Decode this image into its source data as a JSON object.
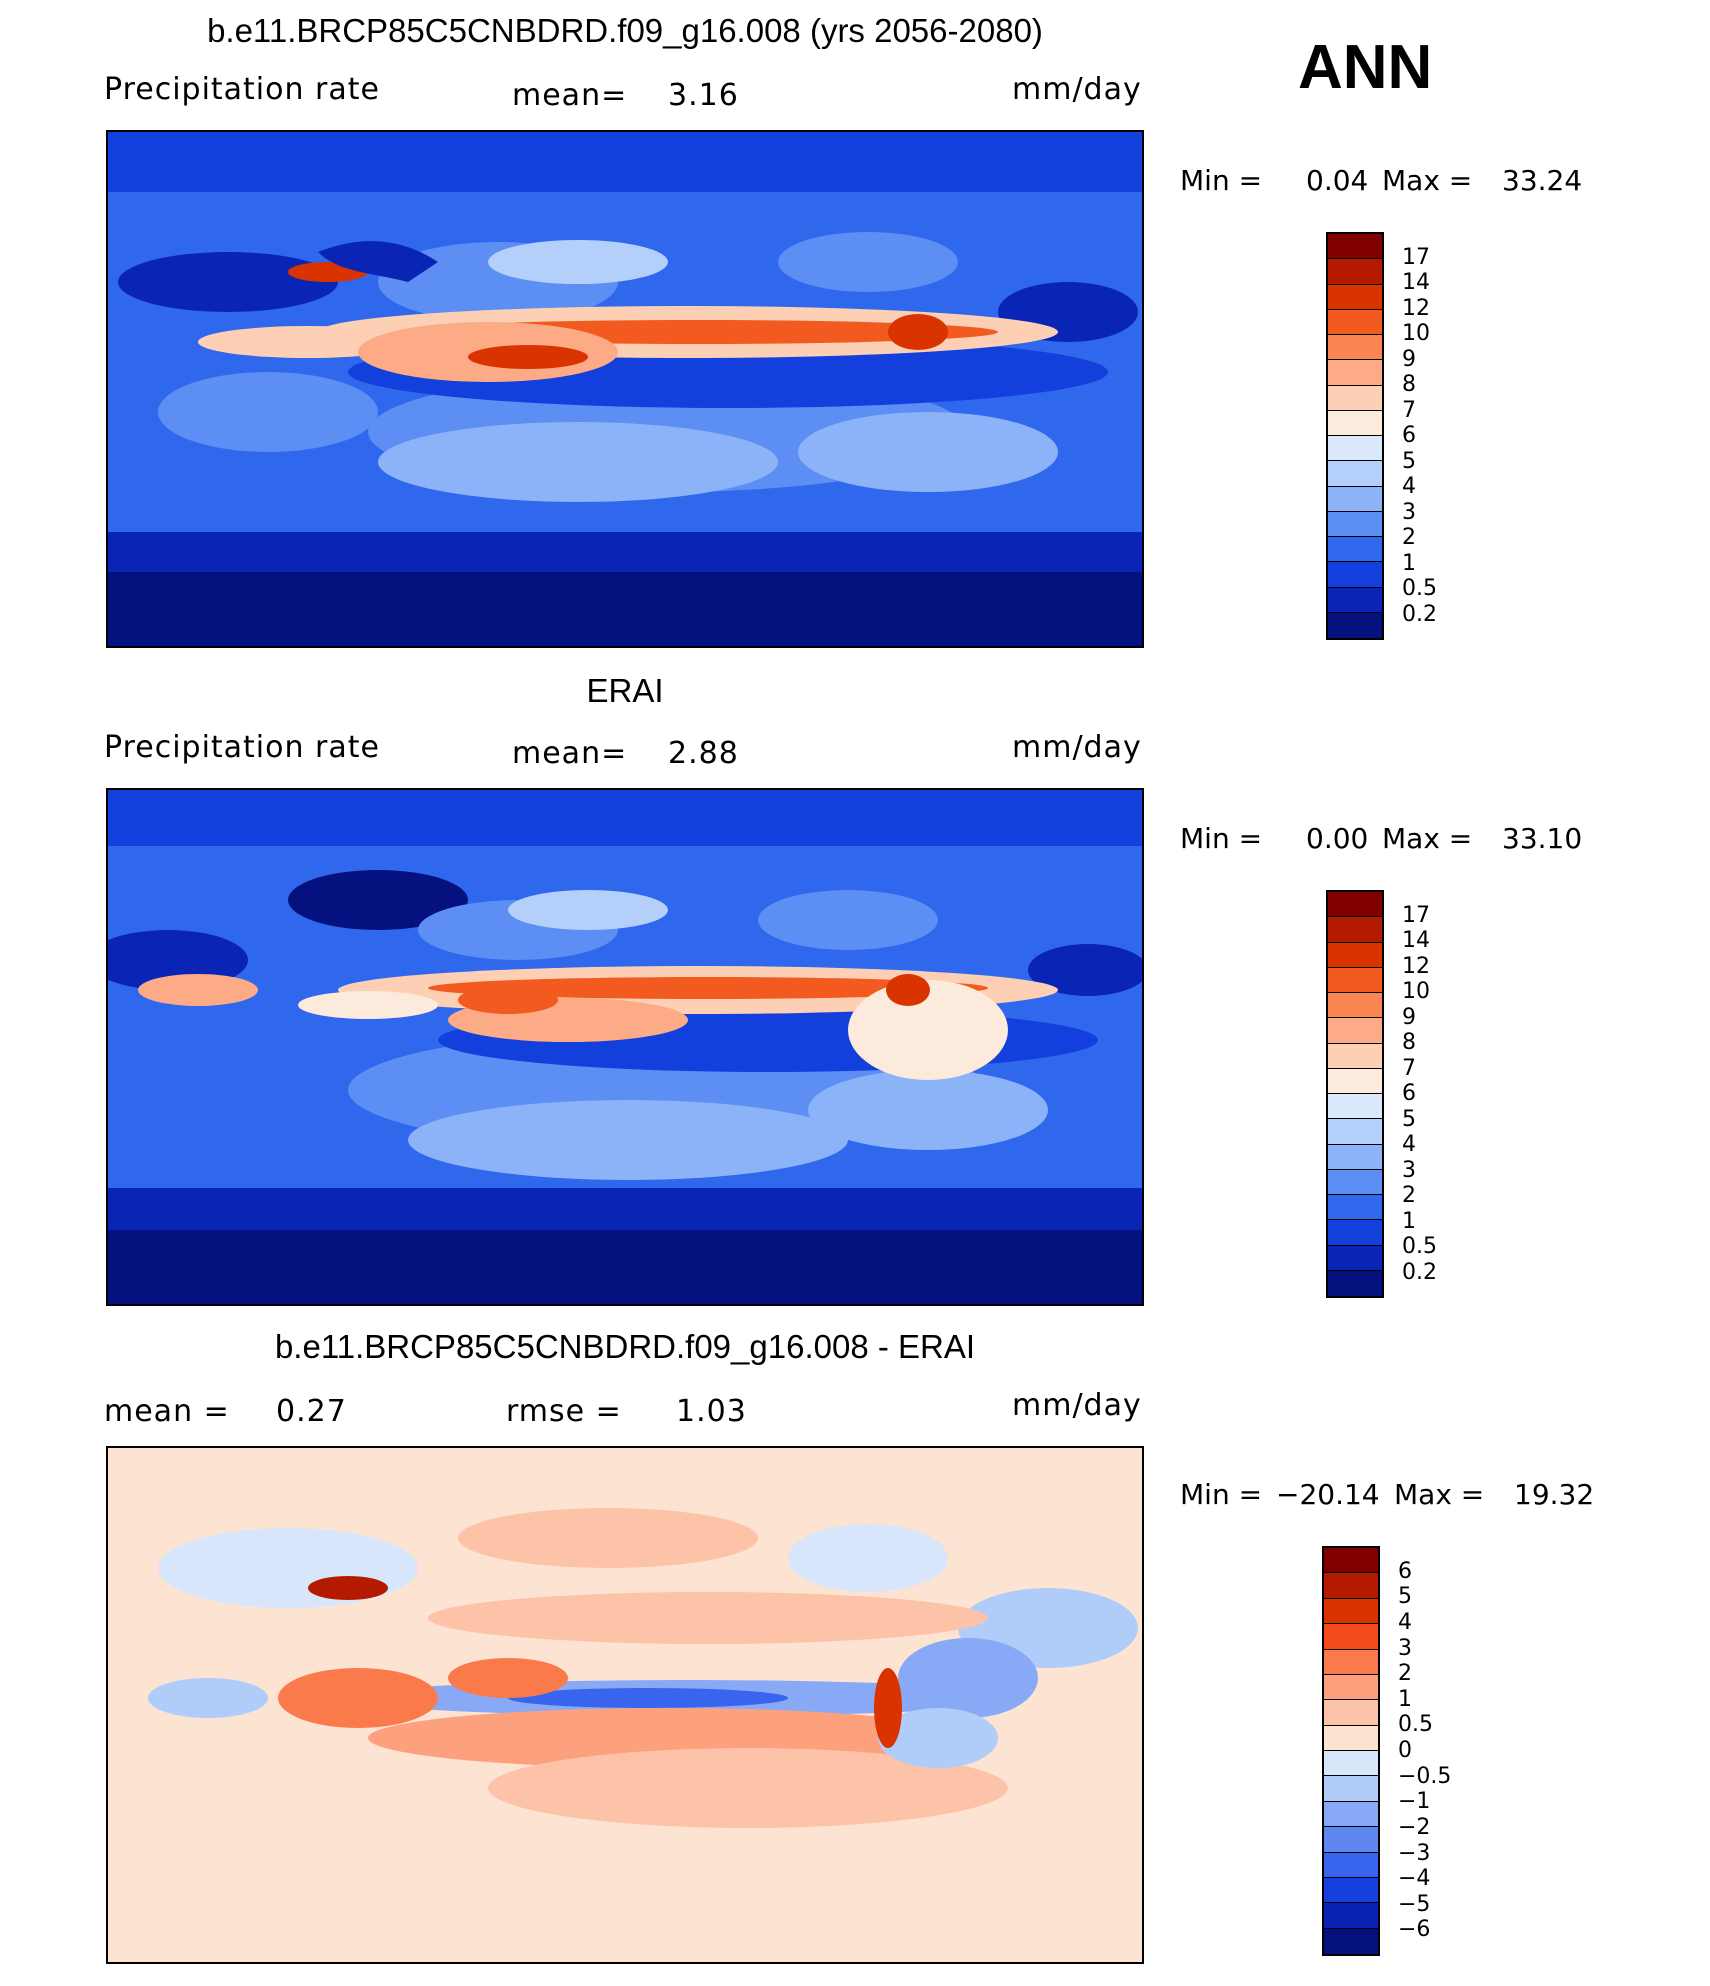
{
  "season": "ANN",
  "panels": [
    {
      "title": "b.e11.BRCP85C5CNBDRD.f09_g16.008 (yrs 2056-2080)",
      "left_label": "Precipitation  rate",
      "mid_label": "mean=",
      "mid_value": "3.16",
      "units": "mm/day",
      "min_label": "Min  =",
      "min_value": "0.04",
      "max_label": "Max  =",
      "max_value": "33.24",
      "colorbar_labels": [
        "17",
        "14",
        "12",
        "10",
        "9",
        "8",
        "7",
        "6",
        "5",
        "4",
        "3",
        "2",
        "1",
        "0.5",
        "0.2"
      ],
      "colorbar_colors": [
        "#800000",
        "#b31a00",
        "#d93300",
        "#f25a1f",
        "#fb8654",
        "#fcab86",
        "#fdd0b6",
        "#fcebdc",
        "#d9e8fb",
        "#b3cffa",
        "#8cb2f7",
        "#5c8ef3",
        "#2f67ed",
        "#1340dc",
        "#0a24b6",
        "#04117f"
      ]
    },
    {
      "title": "ERAI",
      "left_label": "Precipitation  rate",
      "mid_label": "mean=",
      "mid_value": "2.88",
      "units": "mm/day",
      "min_label": "Min  =",
      "min_value": "0.00",
      "max_label": "Max  =",
      "max_value": "33.10",
      "colorbar_labels": [
        "17",
        "14",
        "12",
        "10",
        "9",
        "8",
        "7",
        "6",
        "5",
        "4",
        "3",
        "2",
        "1",
        "0.5",
        "0.2"
      ],
      "colorbar_colors": [
        "#800000",
        "#b31a00",
        "#d93300",
        "#f25a1f",
        "#fb8654",
        "#fcab86",
        "#fdd0b6",
        "#fcebdc",
        "#d9e8fb",
        "#b3cffa",
        "#8cb2f7",
        "#5c8ef3",
        "#2f67ed",
        "#1340dc",
        "#0a24b6",
        "#04117f"
      ]
    },
    {
      "title": "b.e11.BRCP85C5CNBDRD.f09_g16.008 - ERAI",
      "left_label": "mean  =",
      "left_value": "0.27",
      "mid_label": "rmse  =",
      "mid_value": "1.03",
      "units": "mm/day",
      "min_label": "Min  =",
      "min_value": "−20.14",
      "max_label": "Max  =",
      "max_value": "19.32",
      "colorbar_labels": [
        "6",
        "5",
        "4",
        "3",
        "2",
        "1",
        "0.5",
        "0",
        "−0.5",
        "−1",
        "−2",
        "−3",
        "−4",
        "−5",
        "−6"
      ],
      "colorbar_colors": [
        "#800000",
        "#b31a00",
        "#d93300",
        "#f24a1a",
        "#fb7a4c",
        "#fca07e",
        "#fdc3a8",
        "#fde4d2",
        "#d7e6fb",
        "#b0ccf9",
        "#88aaf6",
        "#5f87f2",
        "#3864ee",
        "#1640dd",
        "#0a23b5",
        "#04117f"
      ]
    }
  ]
}
